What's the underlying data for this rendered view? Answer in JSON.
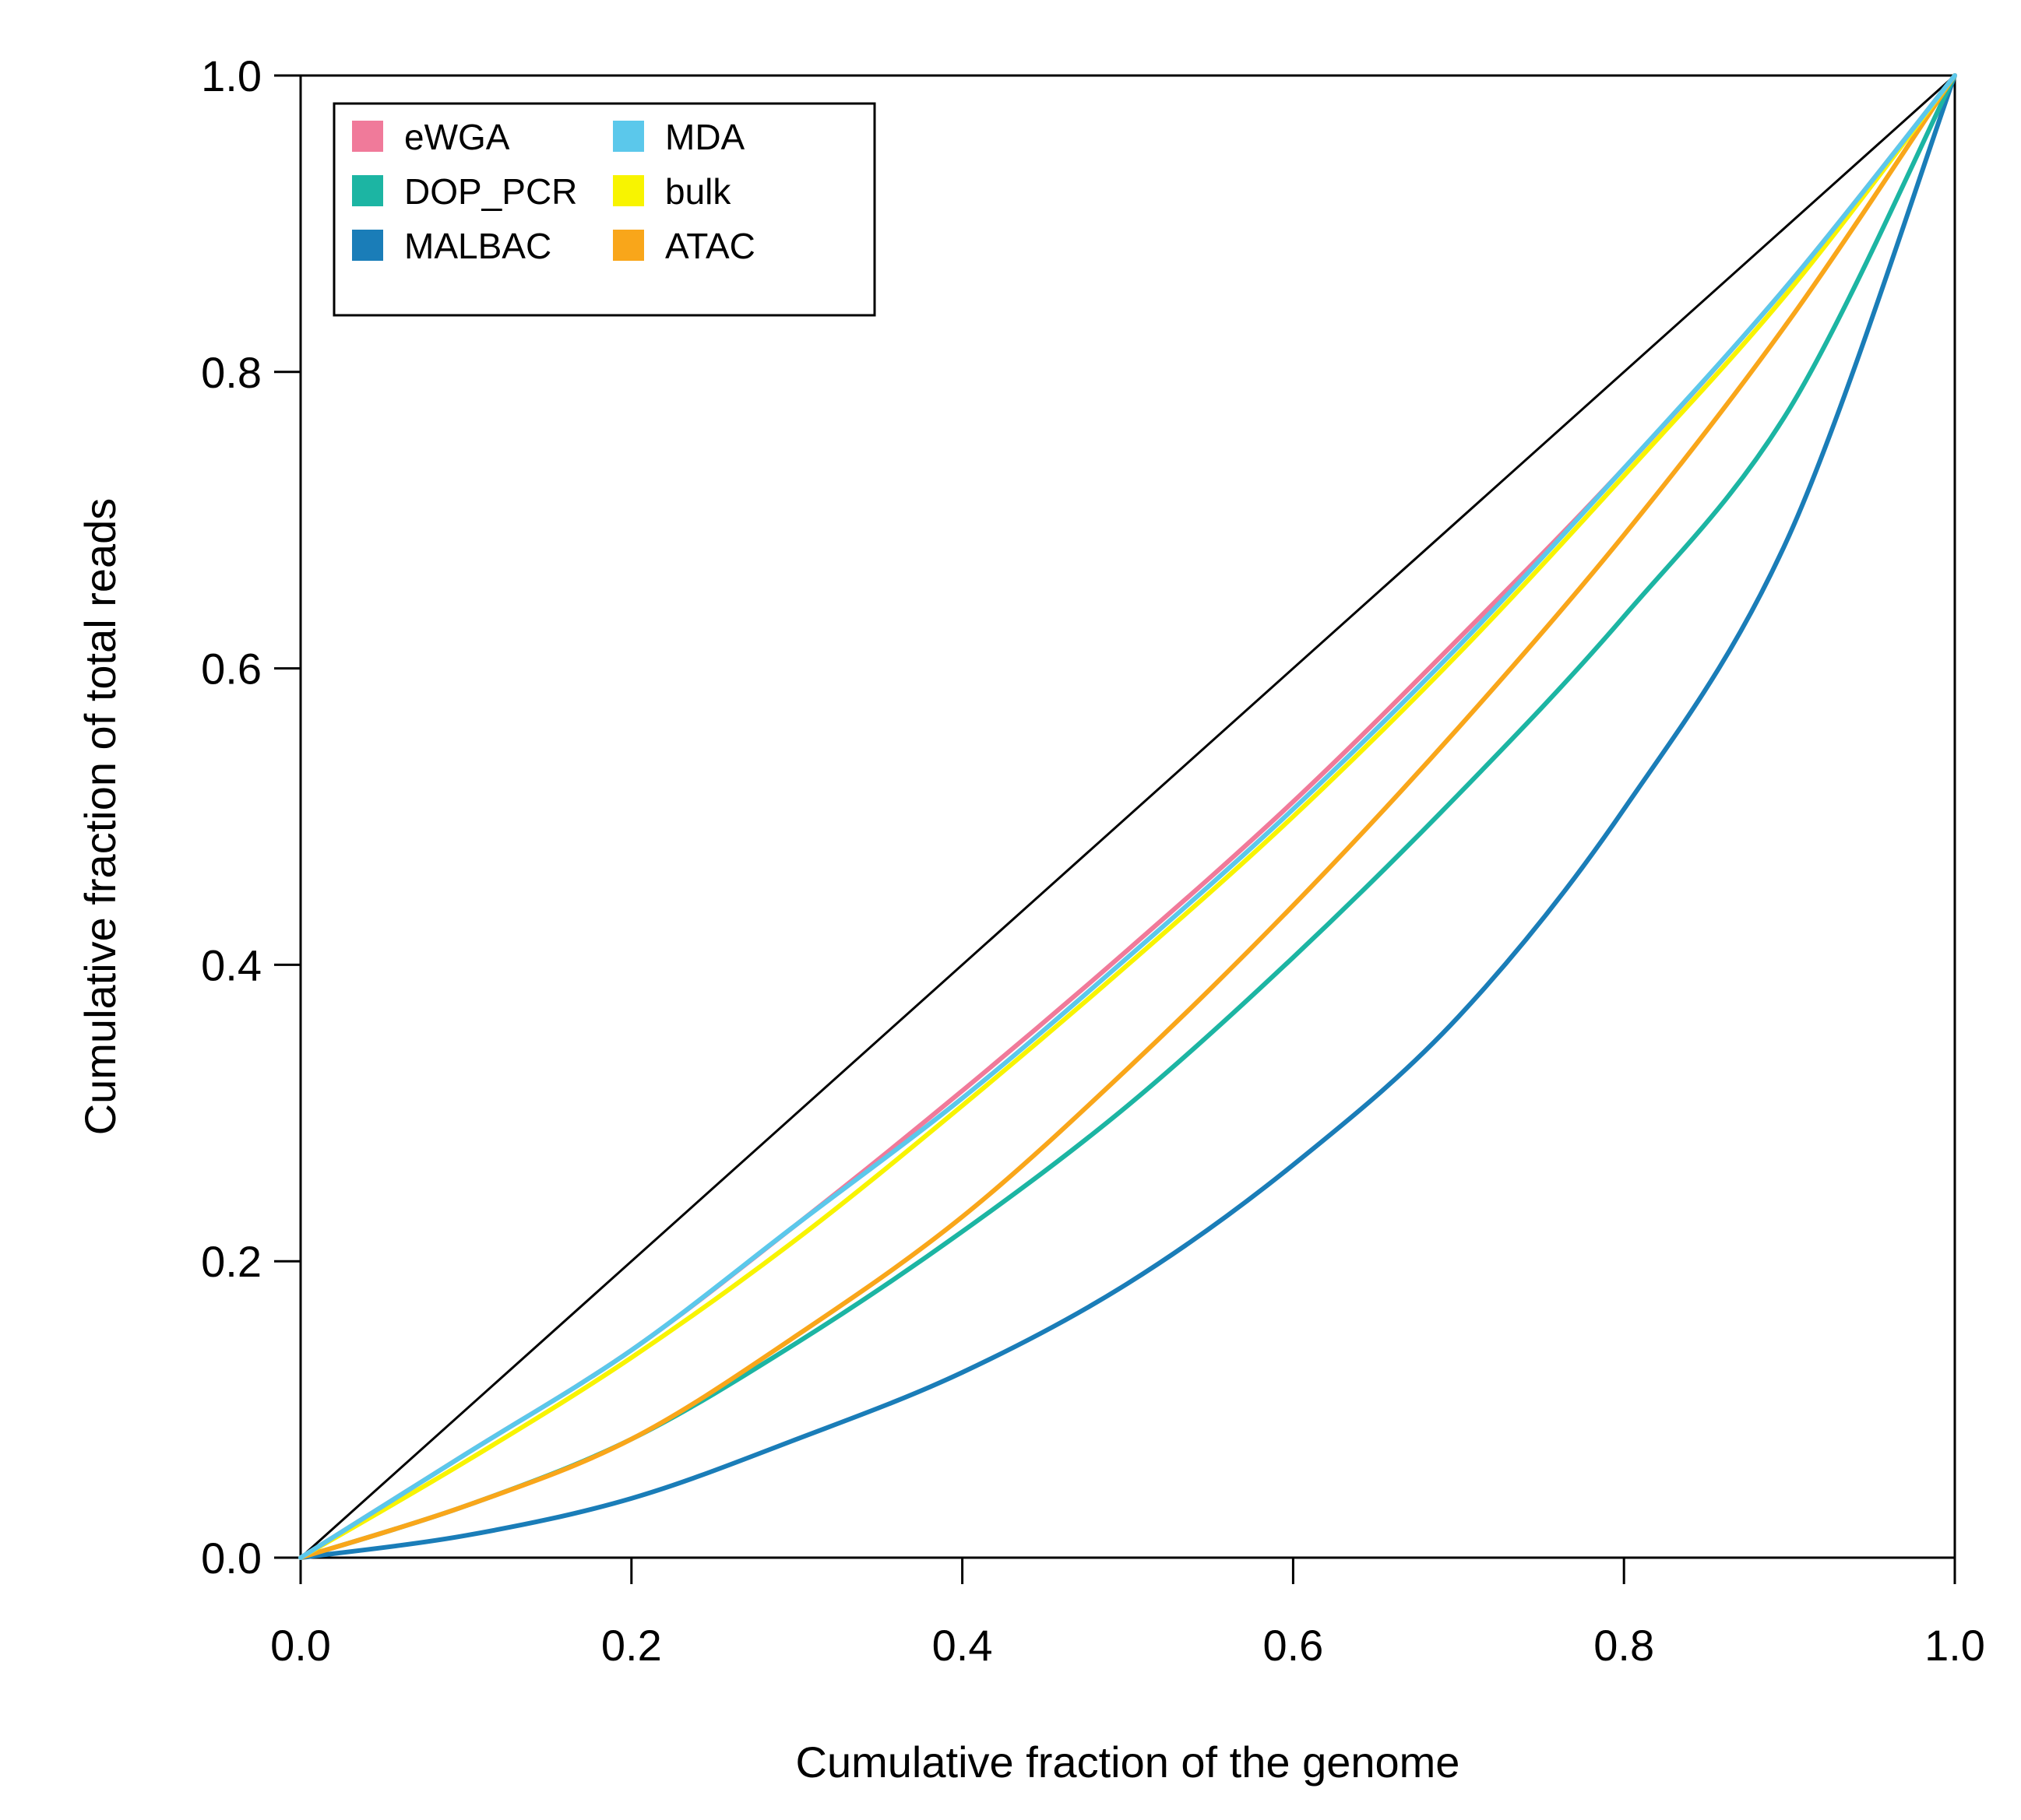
{
  "chart_data": {
    "type": "line",
    "xlabel": "Cumulative fraction of the genome",
    "ylabel": "Cumulative fraction of total reads",
    "xlim": [
      0,
      1
    ],
    "ylim": [
      0,
      1
    ],
    "x_ticks": [
      "0.0",
      "0.2",
      "0.4",
      "0.6",
      "0.8",
      "1.0"
    ],
    "y_ticks": [
      "0.0",
      "0.2",
      "0.4",
      "0.6",
      "0.8",
      "1.0"
    ],
    "grid": false,
    "legend_position": "top-left",
    "x": [
      0,
      0.1,
      0.2,
      0.3,
      0.4,
      0.5,
      0.6,
      0.7,
      0.8,
      0.9,
      1.0
    ],
    "reference_line": {
      "x": [
        0,
        1
      ],
      "y": [
        0,
        1
      ],
      "color": "#000000"
    },
    "series": [
      {
        "name": "eWGA",
        "color": "#F07A9A",
        "values": [
          0,
          0.07,
          0.14,
          0.225,
          0.315,
          0.41,
          0.51,
          0.62,
          0.735,
          0.86,
          1.0
        ]
      },
      {
        "name": "DOP_PCR",
        "color": "#1CB5A3",
        "values": [
          0,
          0.035,
          0.08,
          0.145,
          0.22,
          0.305,
          0.405,
          0.515,
          0.635,
          0.775,
          1.0
        ]
      },
      {
        "name": "MALBAC",
        "color": "#1A7DB8",
        "values": [
          0,
          0.015,
          0.04,
          0.08,
          0.125,
          0.185,
          0.265,
          0.365,
          0.505,
          0.69,
          1.0
        ]
      },
      {
        "name": "MDA",
        "color": "#5BC8EB",
        "values": [
          0,
          0.07,
          0.14,
          0.225,
          0.31,
          0.405,
          0.505,
          0.615,
          0.735,
          0.86,
          1.0
        ]
      },
      {
        "name": "bulk",
        "color": "#F8F400",
        "values": [
          0,
          0.065,
          0.135,
          0.215,
          0.305,
          0.4,
          0.5,
          0.61,
          0.73,
          0.855,
          1.0
        ]
      },
      {
        "name": "ATAC",
        "color": "#F9A61A",
        "values": [
          0,
          0.035,
          0.08,
          0.15,
          0.23,
          0.33,
          0.44,
          0.56,
          0.69,
          0.835,
          1.0
        ]
      }
    ]
  }
}
